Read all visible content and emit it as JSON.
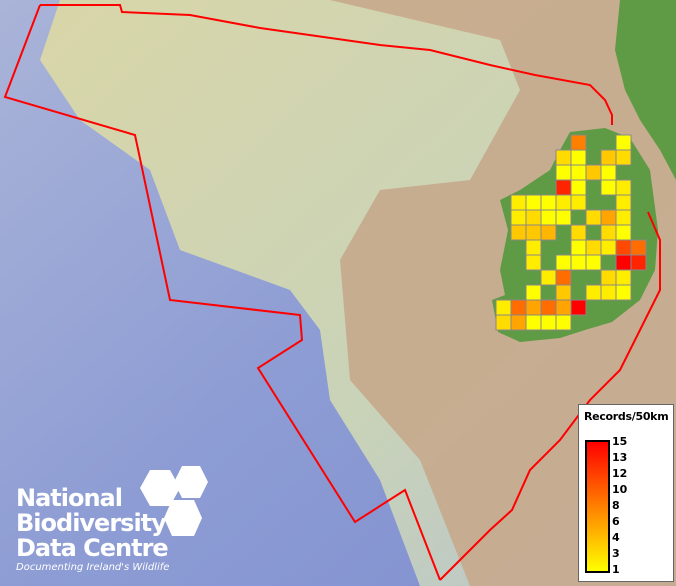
{
  "map": {
    "legend": {
      "title": "Records/50km",
      "ticks": [
        "15",
        "13",
        "12",
        "10",
        "8",
        "6",
        "4",
        "3",
        "1"
      ],
      "min_color": "#ffff00",
      "max_color": "#ff0000",
      "range": [
        1,
        15
      ]
    },
    "grid_cells": [
      [
        0,
        5,
        8
      ],
      [
        0,
        8,
        1
      ],
      [
        1,
        4,
        3
      ],
      [
        1,
        5,
        1
      ],
      [
        1,
        7,
        4
      ],
      [
        1,
        8,
        3
      ],
      [
        2,
        4,
        1
      ],
      [
        2,
        5,
        1
      ],
      [
        2,
        6,
        4
      ],
      [
        2,
        7,
        1
      ],
      [
        3,
        4,
        13
      ],
      [
        3,
        5,
        1
      ],
      [
        3,
        7,
        1
      ],
      [
        3,
        8,
        2
      ],
      [
        4,
        1,
        2
      ],
      [
        4,
        2,
        1
      ],
      [
        4,
        3,
        1
      ],
      [
        4,
        4,
        2
      ],
      [
        4,
        5,
        2
      ],
      [
        4,
        8,
        2
      ],
      [
        5,
        1,
        2
      ],
      [
        5,
        2,
        3
      ],
      [
        5,
        3,
        1
      ],
      [
        5,
        4,
        1
      ],
      [
        5,
        6,
        3
      ],
      [
        5,
        7,
        6
      ],
      [
        5,
        8,
        2
      ],
      [
        6,
        1,
        4
      ],
      [
        6,
        2,
        4
      ],
      [
        6,
        3,
        5
      ],
      [
        6,
        5,
        3
      ],
      [
        6,
        7,
        3
      ],
      [
        6,
        8,
        1
      ],
      [
        7,
        2,
        2
      ],
      [
        7,
        5,
        1
      ],
      [
        7,
        6,
        3
      ],
      [
        7,
        7,
        2
      ],
      [
        7,
        8,
        11
      ],
      [
        7,
        9,
        9
      ],
      [
        8,
        2,
        2
      ],
      [
        8,
        4,
        1
      ],
      [
        8,
        5,
        1
      ],
      [
        8,
        6,
        1
      ],
      [
        8,
        8,
        15
      ],
      [
        8,
        9,
        13
      ],
      [
        9,
        3,
        2
      ],
      [
        9,
        4,
        9
      ],
      [
        9,
        7,
        3
      ],
      [
        9,
        8,
        2
      ],
      [
        10,
        2,
        1
      ],
      [
        10,
        4,
        4
      ],
      [
        10,
        6,
        2
      ],
      [
        10,
        7,
        2
      ],
      [
        10,
        8,
        1
      ],
      [
        11,
        0,
        2
      ],
      [
        11,
        1,
        9
      ],
      [
        11,
        2,
        6
      ],
      [
        11,
        3,
        9
      ],
      [
        11,
        4,
        6
      ],
      [
        11,
        5,
        15
      ],
      [
        12,
        0,
        3
      ],
      [
        12,
        1,
        6
      ],
      [
        12,
        2,
        1
      ],
      [
        12,
        3,
        1
      ],
      [
        12,
        4,
        1
      ]
    ],
    "boundary_color": "#ff0000",
    "land_color": "#5f9a45",
    "sea_color": "#8d9fd6"
  },
  "logo": {
    "line1": "National",
    "line2": "Biodiversity",
    "line3": "Data Centre",
    "tagline": "Documenting Ireland's Wildlife"
  }
}
